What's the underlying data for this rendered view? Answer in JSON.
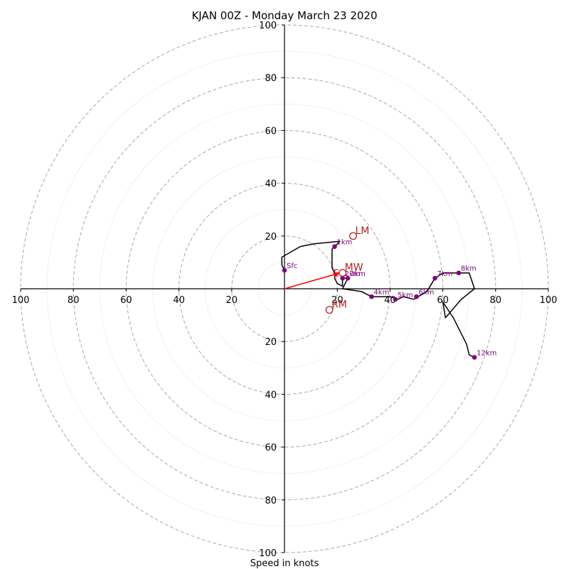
{
  "title": "KJAN 00Z - Monday March 23 2020",
  "chart_data": {
    "type": "scatter",
    "title": "KJAN 00Z - Monday March 23 2020",
    "xlabel": "Speed in knots",
    "ylabel": "",
    "xlim": [
      -100,
      100
    ],
    "ylim": [
      -100,
      100
    ],
    "ring_step": 10,
    "ring_major_step": 20,
    "x_ticks": [
      {
        "v": -100,
        "label": "100"
      },
      {
        "v": -80,
        "label": "80"
      },
      {
        "v": -60,
        "label": "60"
      },
      {
        "v": -40,
        "label": "40"
      },
      {
        "v": -20,
        "label": "20"
      },
      {
        "v": 20,
        "label": "20"
      },
      {
        "v": 40,
        "label": "40"
      },
      {
        "v": 60,
        "label": "60"
      },
      {
        "v": 80,
        "label": "80"
      },
      {
        "v": 100,
        "label": "100"
      }
    ],
    "y_ticks": [
      {
        "v": 100,
        "label": "100"
      },
      {
        "v": 80,
        "label": "80"
      },
      {
        "v": 60,
        "label": "60"
      },
      {
        "v": 40,
        "label": "40"
      },
      {
        "v": 20,
        "label": "20"
      },
      {
        "v": -20,
        "label": "20"
      },
      {
        "v": -40,
        "label": "40"
      },
      {
        "v": -60,
        "label": "60"
      },
      {
        "v": -80,
        "label": "80"
      },
      {
        "v": -100,
        "label": "100"
      }
    ],
    "hodograph_trace": [
      [
        0,
        7
      ],
      [
        -1,
        9
      ],
      [
        -1,
        12
      ],
      [
        6,
        16
      ],
      [
        11,
        17
      ],
      [
        21,
        18
      ],
      [
        18,
        15
      ],
      [
        18,
        11
      ],
      [
        18,
        8
      ],
      [
        19,
        6
      ],
      [
        19,
        4
      ],
      [
        20,
        2
      ],
      [
        22,
        1
      ],
      [
        22,
        4
      ],
      [
        23,
        4
      ],
      [
        24,
        4
      ],
      [
        23,
        2
      ],
      [
        22,
        0
      ],
      [
        29,
        -1
      ],
      [
        33,
        -3
      ],
      [
        40,
        -3
      ],
      [
        43,
        -4
      ],
      [
        45,
        -3
      ],
      [
        49,
        -4
      ],
      [
        54,
        -1
      ],
      [
        57,
        4
      ],
      [
        60,
        6
      ],
      [
        65,
        6
      ],
      [
        70,
        6
      ],
      [
        71,
        3
      ],
      [
        72,
        0
      ],
      [
        67,
        -4
      ],
      [
        61,
        -11
      ],
      [
        60,
        -5
      ],
      [
        64,
        -11
      ],
      [
        69,
        -21
      ],
      [
        70,
        -25
      ],
      [
        72,
        -26
      ]
    ],
    "trace_color": "#000000",
    "height_markers": [
      {
        "label": "Sfc",
        "x": 0,
        "y": 7
      },
      {
        "label": "1km",
        "x": 19,
        "y": 16
      },
      {
        "label": "2km",
        "x": 22,
        "y": 4
      },
      {
        "label": "3km",
        "x": 24,
        "y": 4
      },
      {
        "label": "4km",
        "x": 33,
        "y": -3
      },
      {
        "label": "5km",
        "x": 42,
        "y": -4
      },
      {
        "label": "6km",
        "x": 50,
        "y": -3
      },
      {
        "label": "7km",
        "x": 57,
        "y": 4
      },
      {
        "label": "8km",
        "x": 66,
        "y": 6
      },
      {
        "label": "12km",
        "x": 72,
        "y": -26
      }
    ],
    "marker_color": "#800080",
    "storm_motion_points": [
      {
        "label": "LM",
        "x": 26,
        "y": 20
      },
      {
        "label": "MW",
        "x": 22,
        "y": 6
      },
      {
        "label": "RM",
        "x": 17,
        "y": -8
      }
    ],
    "storm_motion_color": "#b22222",
    "vector": {
      "label": "E",
      "from": [
        0,
        0
      ],
      "to": [
        21,
        6
      ],
      "color": "#ff0000"
    },
    "grid": true
  }
}
